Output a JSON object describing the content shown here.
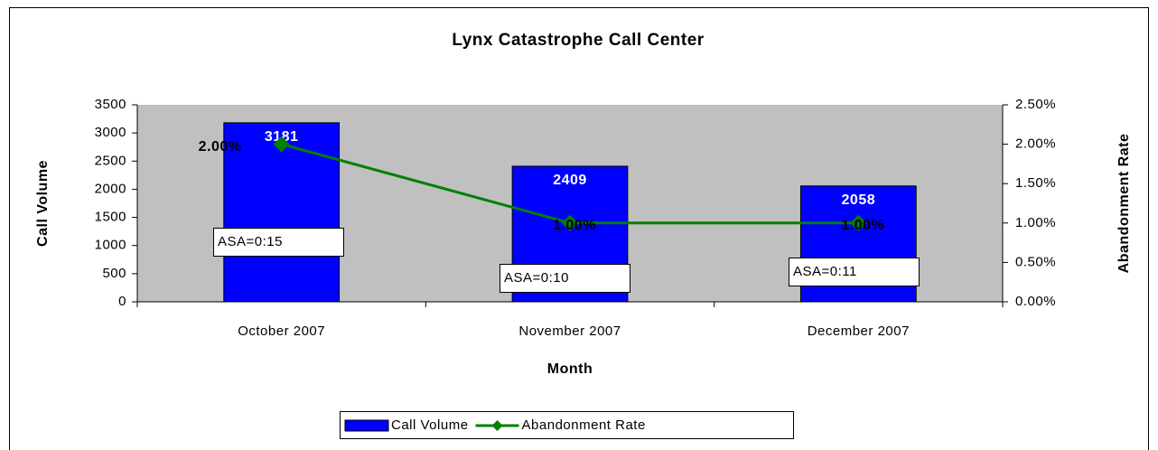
{
  "chart_data": {
    "type": "bar",
    "title": "Lynx Catastrophe Call Center",
    "x_label": "Month",
    "y_label": "Call Volume",
    "y2_label": "Abandonment Rate",
    "categories": [
      "October 2007",
      "November 2007",
      "December 2007"
    ],
    "series": [
      {
        "name": "Call Volume",
        "type": "bar",
        "color": "#0000ff",
        "values": [
          3181,
          2409,
          2058
        ]
      },
      {
        "name": "Abandonment Rate",
        "type": "line",
        "axis": "y2",
        "color": "#008000",
        "values": [
          2,
          1,
          1
        ],
        "value_labels": [
          "2.00%",
          "1.00%",
          "1.00%"
        ]
      }
    ],
    "annotations": [
      "ASA=0:15",
      "ASA=0:10",
      "ASA=0:11"
    ],
    "ylim": [
      0,
      3500
    ],
    "yticks": [
      0,
      500,
      1000,
      1500,
      2000,
      2500,
      3000,
      3500
    ],
    "y2lim": [
      0,
      2.5
    ],
    "y2ticks": [
      {
        "value": 0,
        "label": "0.00%"
      },
      {
        "value": 0.5,
        "label": "0.50%"
      },
      {
        "value": 1,
        "label": "1.00%"
      },
      {
        "value": 1.5,
        "label": "1.50%"
      },
      {
        "value": 2,
        "label": "2.00%"
      },
      {
        "value": 2.5,
        "label": "2.50%"
      }
    ],
    "grid": false,
    "legend": "bottom"
  }
}
